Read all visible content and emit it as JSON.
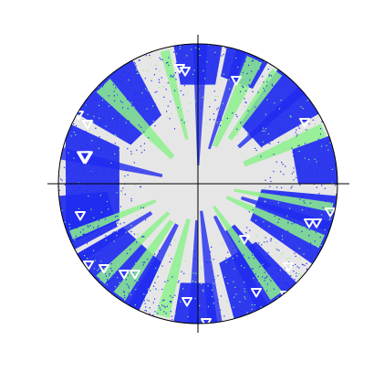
{
  "figure": {
    "kind": "stereographic-projection",
    "title": "",
    "background_color": "#e6e6e6",
    "outline_color": "#000000",
    "crosshair_color": "#000000",
    "density_colors": {
      "high": "#1f2bf0",
      "medium": "#8cf08c"
    },
    "marker": {
      "symbol": "open-down-triangle",
      "stroke": "#ffffff",
      "fill": "none"
    },
    "marker_count": 22,
    "labels": []
  }
}
